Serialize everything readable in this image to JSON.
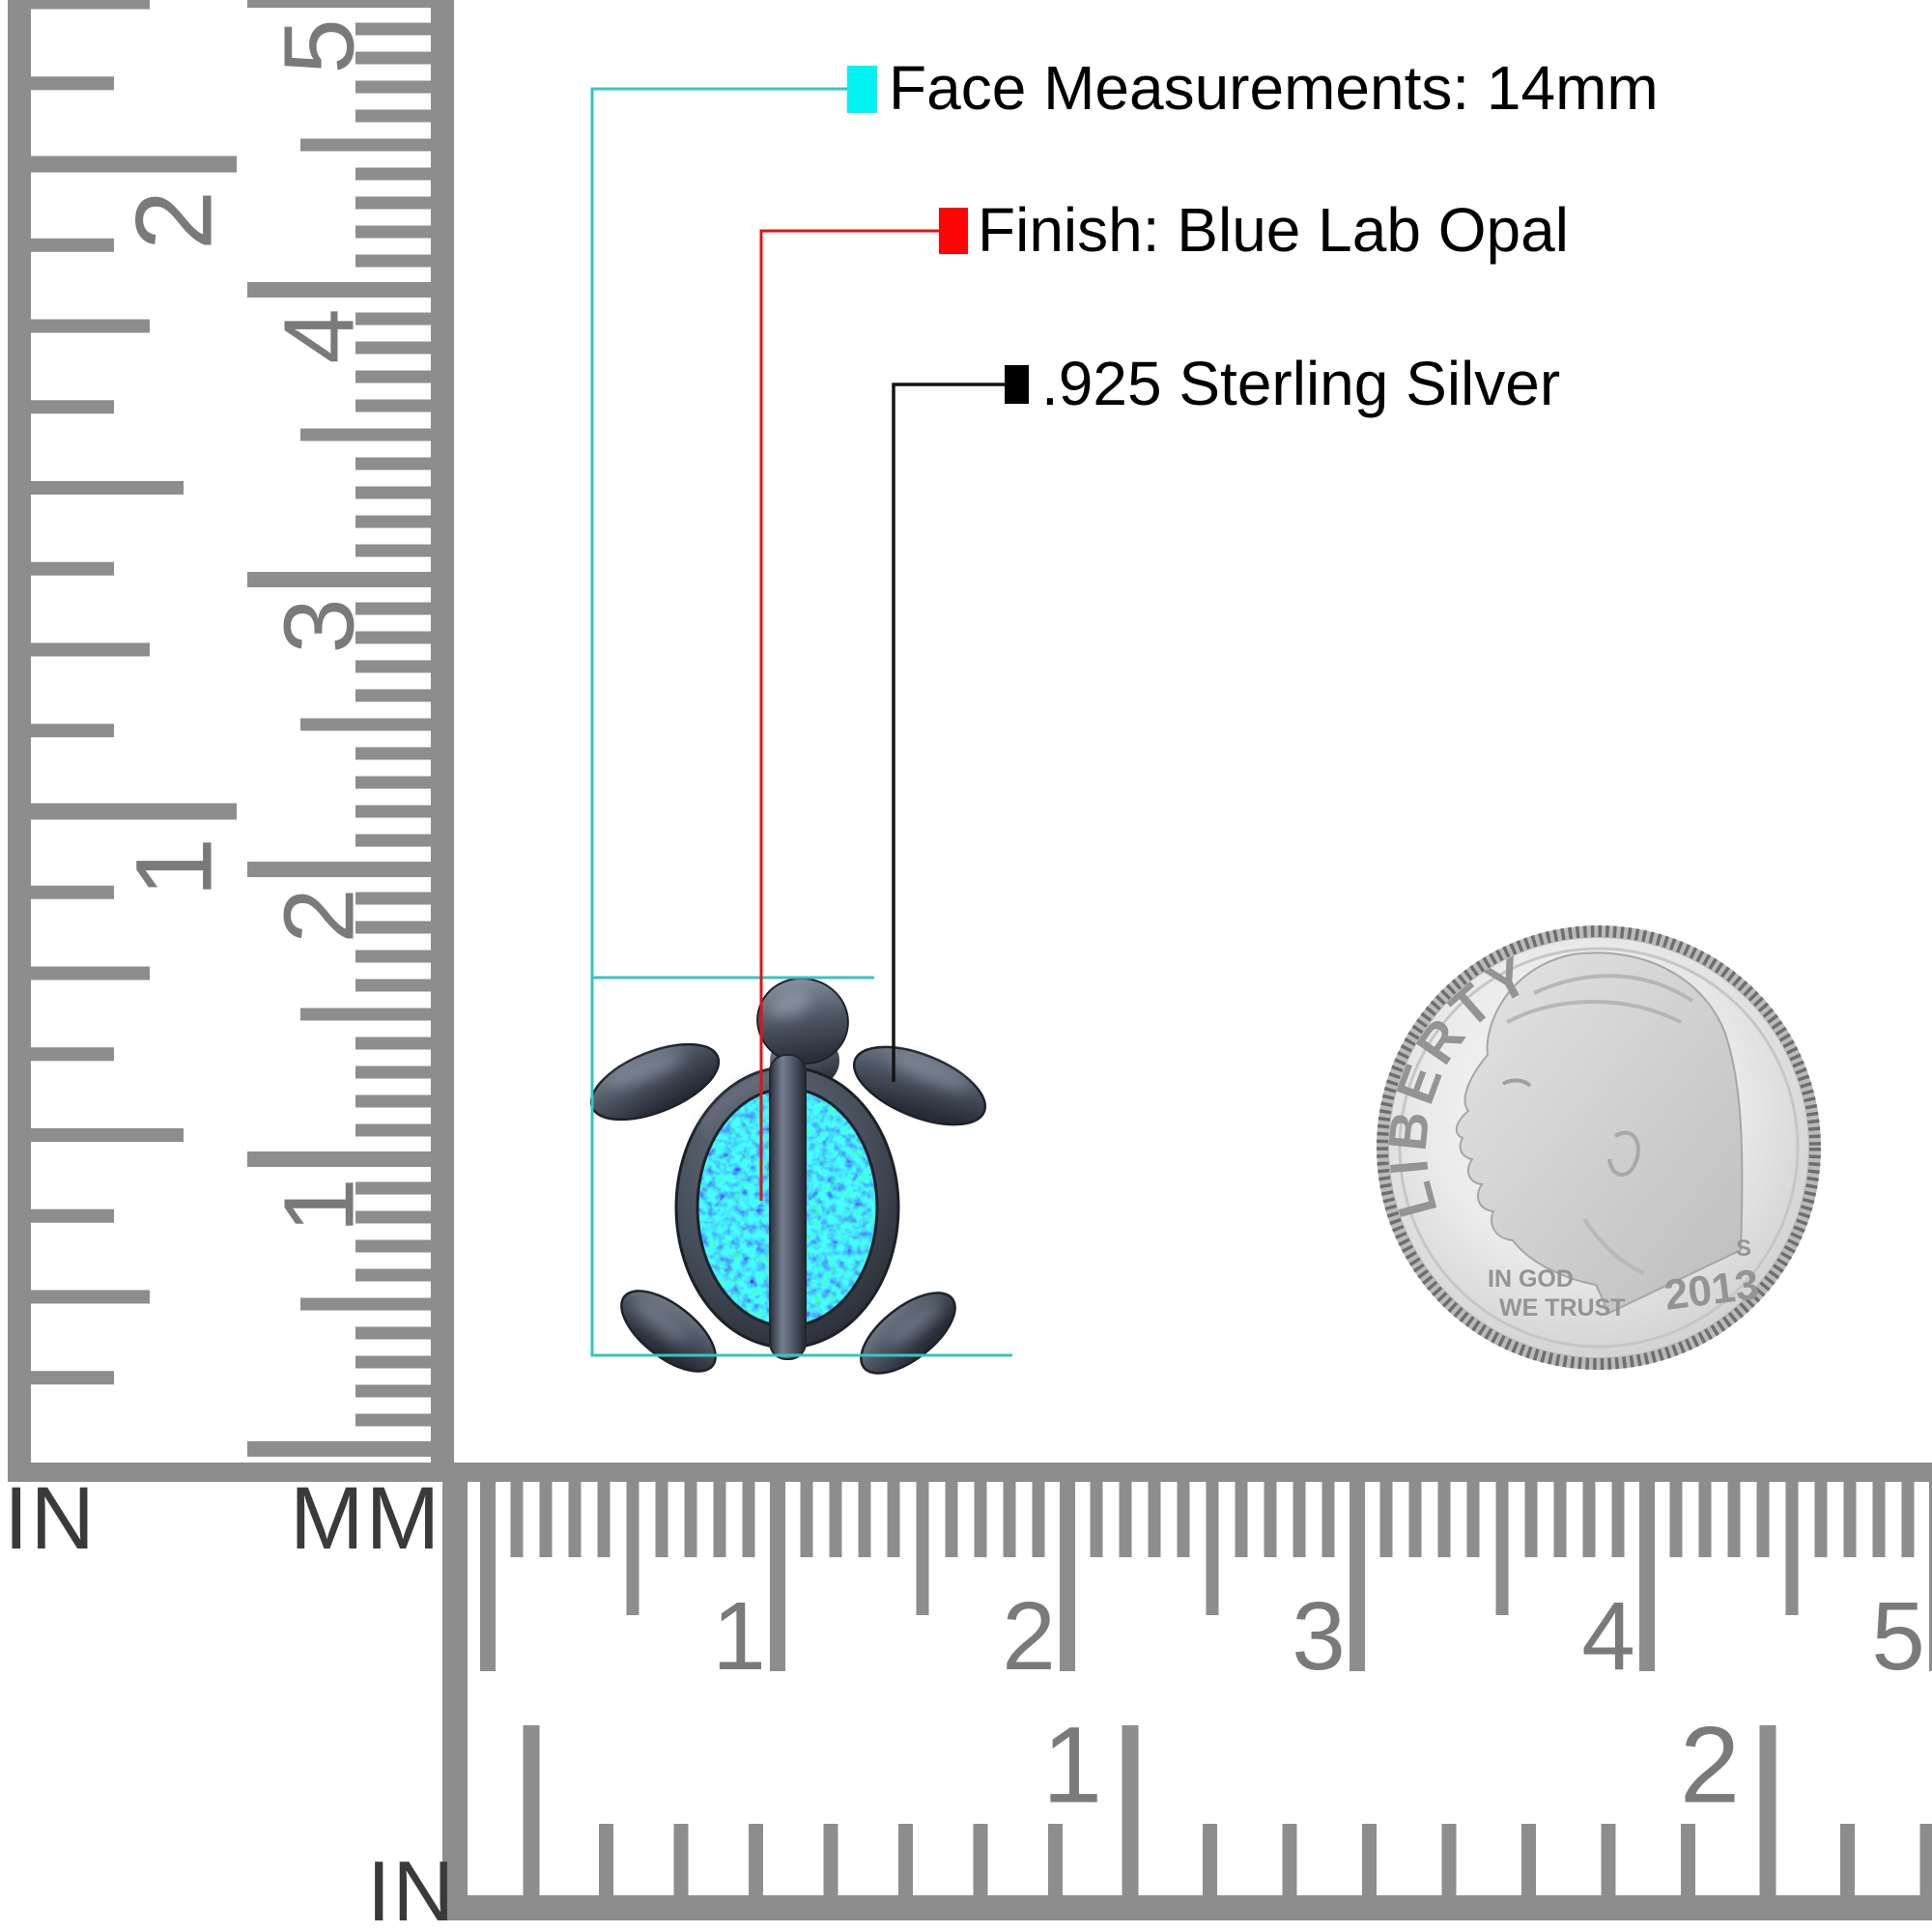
{
  "annotations": {
    "face": {
      "text": "Face Measurements: 14mm",
      "swatch_color": "#00f2f2",
      "line_color": "#35c4c4"
    },
    "finish": {
      "text": "Finish: Blue Lab Opal",
      "swatch_color": "#fb0505",
      "line_color": "#e01414"
    },
    "metal": {
      "text": ".925 Sterling Silver",
      "swatch_color": "#000000",
      "line_color": "#141414"
    }
  },
  "rulers": {
    "tick_color": "#8d8d8d",
    "number_color": "#7a7a7a",
    "unit_label_color": "#3a3a3a",
    "left_inch": {
      "unit_label": "IN",
      "numbers": [
        "1",
        "2"
      ]
    },
    "left_mm": {
      "unit_label": "MM",
      "numbers": [
        "1",
        "2",
        "3",
        "4",
        "5"
      ]
    },
    "bottom_cm": {
      "numbers": [
        "1",
        "2",
        "3",
        "4",
        "5"
      ]
    },
    "bottom_inch": {
      "unit_label": "IN",
      "numbers": [
        "1",
        "2"
      ]
    }
  },
  "coin": {
    "legend": "LIBERTY",
    "motto_line1": "IN GOD",
    "motto_line2": "WE TRUST",
    "mint_mark": "S",
    "year": "2013",
    "text_color": "#949494"
  },
  "jewelry": {
    "body_color": "#4d5462",
    "opal_blue": "#2a62d0",
    "opal_green": "#27c98c"
  }
}
